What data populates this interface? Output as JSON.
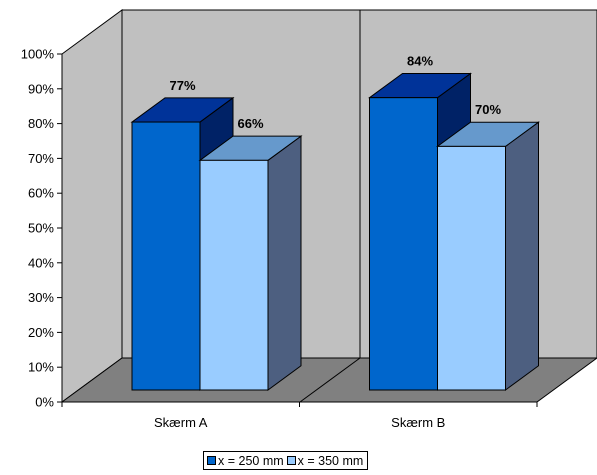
{
  "chart_data": {
    "type": "bar",
    "categories": [
      "Skærm A",
      "Skærm B"
    ],
    "series": [
      {
        "name": "x = 250 mm",
        "values": [
          77,
          84
        ],
        "data_labels": [
          "77%",
          "84%"
        ],
        "color": "#0066CC"
      },
      {
        "name": "x = 350 mm",
        "values": [
          66,
          70
        ],
        "data_labels": [
          "66%",
          "70%"
        ],
        "color": "#99CCFF"
      }
    ],
    "ylim": [
      0,
      100
    ],
    "yticks": [
      "0%",
      "10%",
      "20%",
      "30%",
      "40%",
      "50%",
      "60%",
      "70%",
      "80%",
      "90%",
      "100%"
    ],
    "title": "",
    "xlabel": "",
    "ylabel": "",
    "grid": false,
    "three_d": true,
    "legend_position": "bottom",
    "wall_color": "#C0C0C0",
    "floor_color": "#808080"
  }
}
